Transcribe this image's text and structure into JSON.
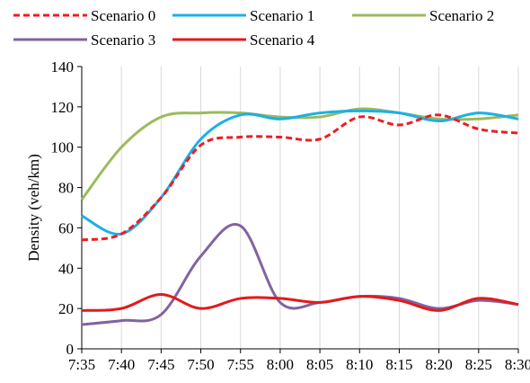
{
  "chart_data": {
    "type": "line",
    "title": "",
    "xlabel": "",
    "ylabel": "Density (veh/km)",
    "ylim": [
      0,
      140
    ],
    "yticks": [
      0,
      20,
      40,
      60,
      80,
      100,
      120,
      140
    ],
    "grid": "vertical",
    "legend": "top",
    "categories": [
      "7:35",
      "7:40",
      "7:45",
      "7:50",
      "7:55",
      "8:00",
      "8:05",
      "8:10",
      "8:15",
      "8:20",
      "8:25",
      "8:30"
    ],
    "series": [
      {
        "name": "Scenario 0",
        "color": "#ee1c25",
        "dash": "dashed",
        "values": [
          54,
          57,
          75,
          101,
          105,
          105,
          104,
          115,
          111,
          116,
          109,
          107
        ]
      },
      {
        "name": "Scenario 1",
        "color": "#1cb0e6",
        "dash": "solid",
        "values": [
          66,
          57,
          75,
          104,
          116,
          114,
          117,
          118,
          117,
          113,
          117,
          114
        ]
      },
      {
        "name": "Scenario 2",
        "color": "#9bbb59",
        "dash": "solid",
        "values": [
          74,
          100,
          115,
          117,
          117,
          115,
          115,
          119,
          117,
          114,
          114,
          116
        ]
      },
      {
        "name": "Scenario 3",
        "color": "#8064a2",
        "dash": "solid",
        "values": [
          12,
          14,
          17,
          46,
          61,
          23,
          23,
          26,
          25,
          20,
          24,
          22
        ]
      },
      {
        "name": "Scenario 4",
        "color": "#e31a1c",
        "dash": "solid",
        "values": [
          19,
          20,
          27,
          20,
          25,
          25,
          23,
          26,
          24,
          19,
          25,
          22
        ]
      }
    ]
  }
}
